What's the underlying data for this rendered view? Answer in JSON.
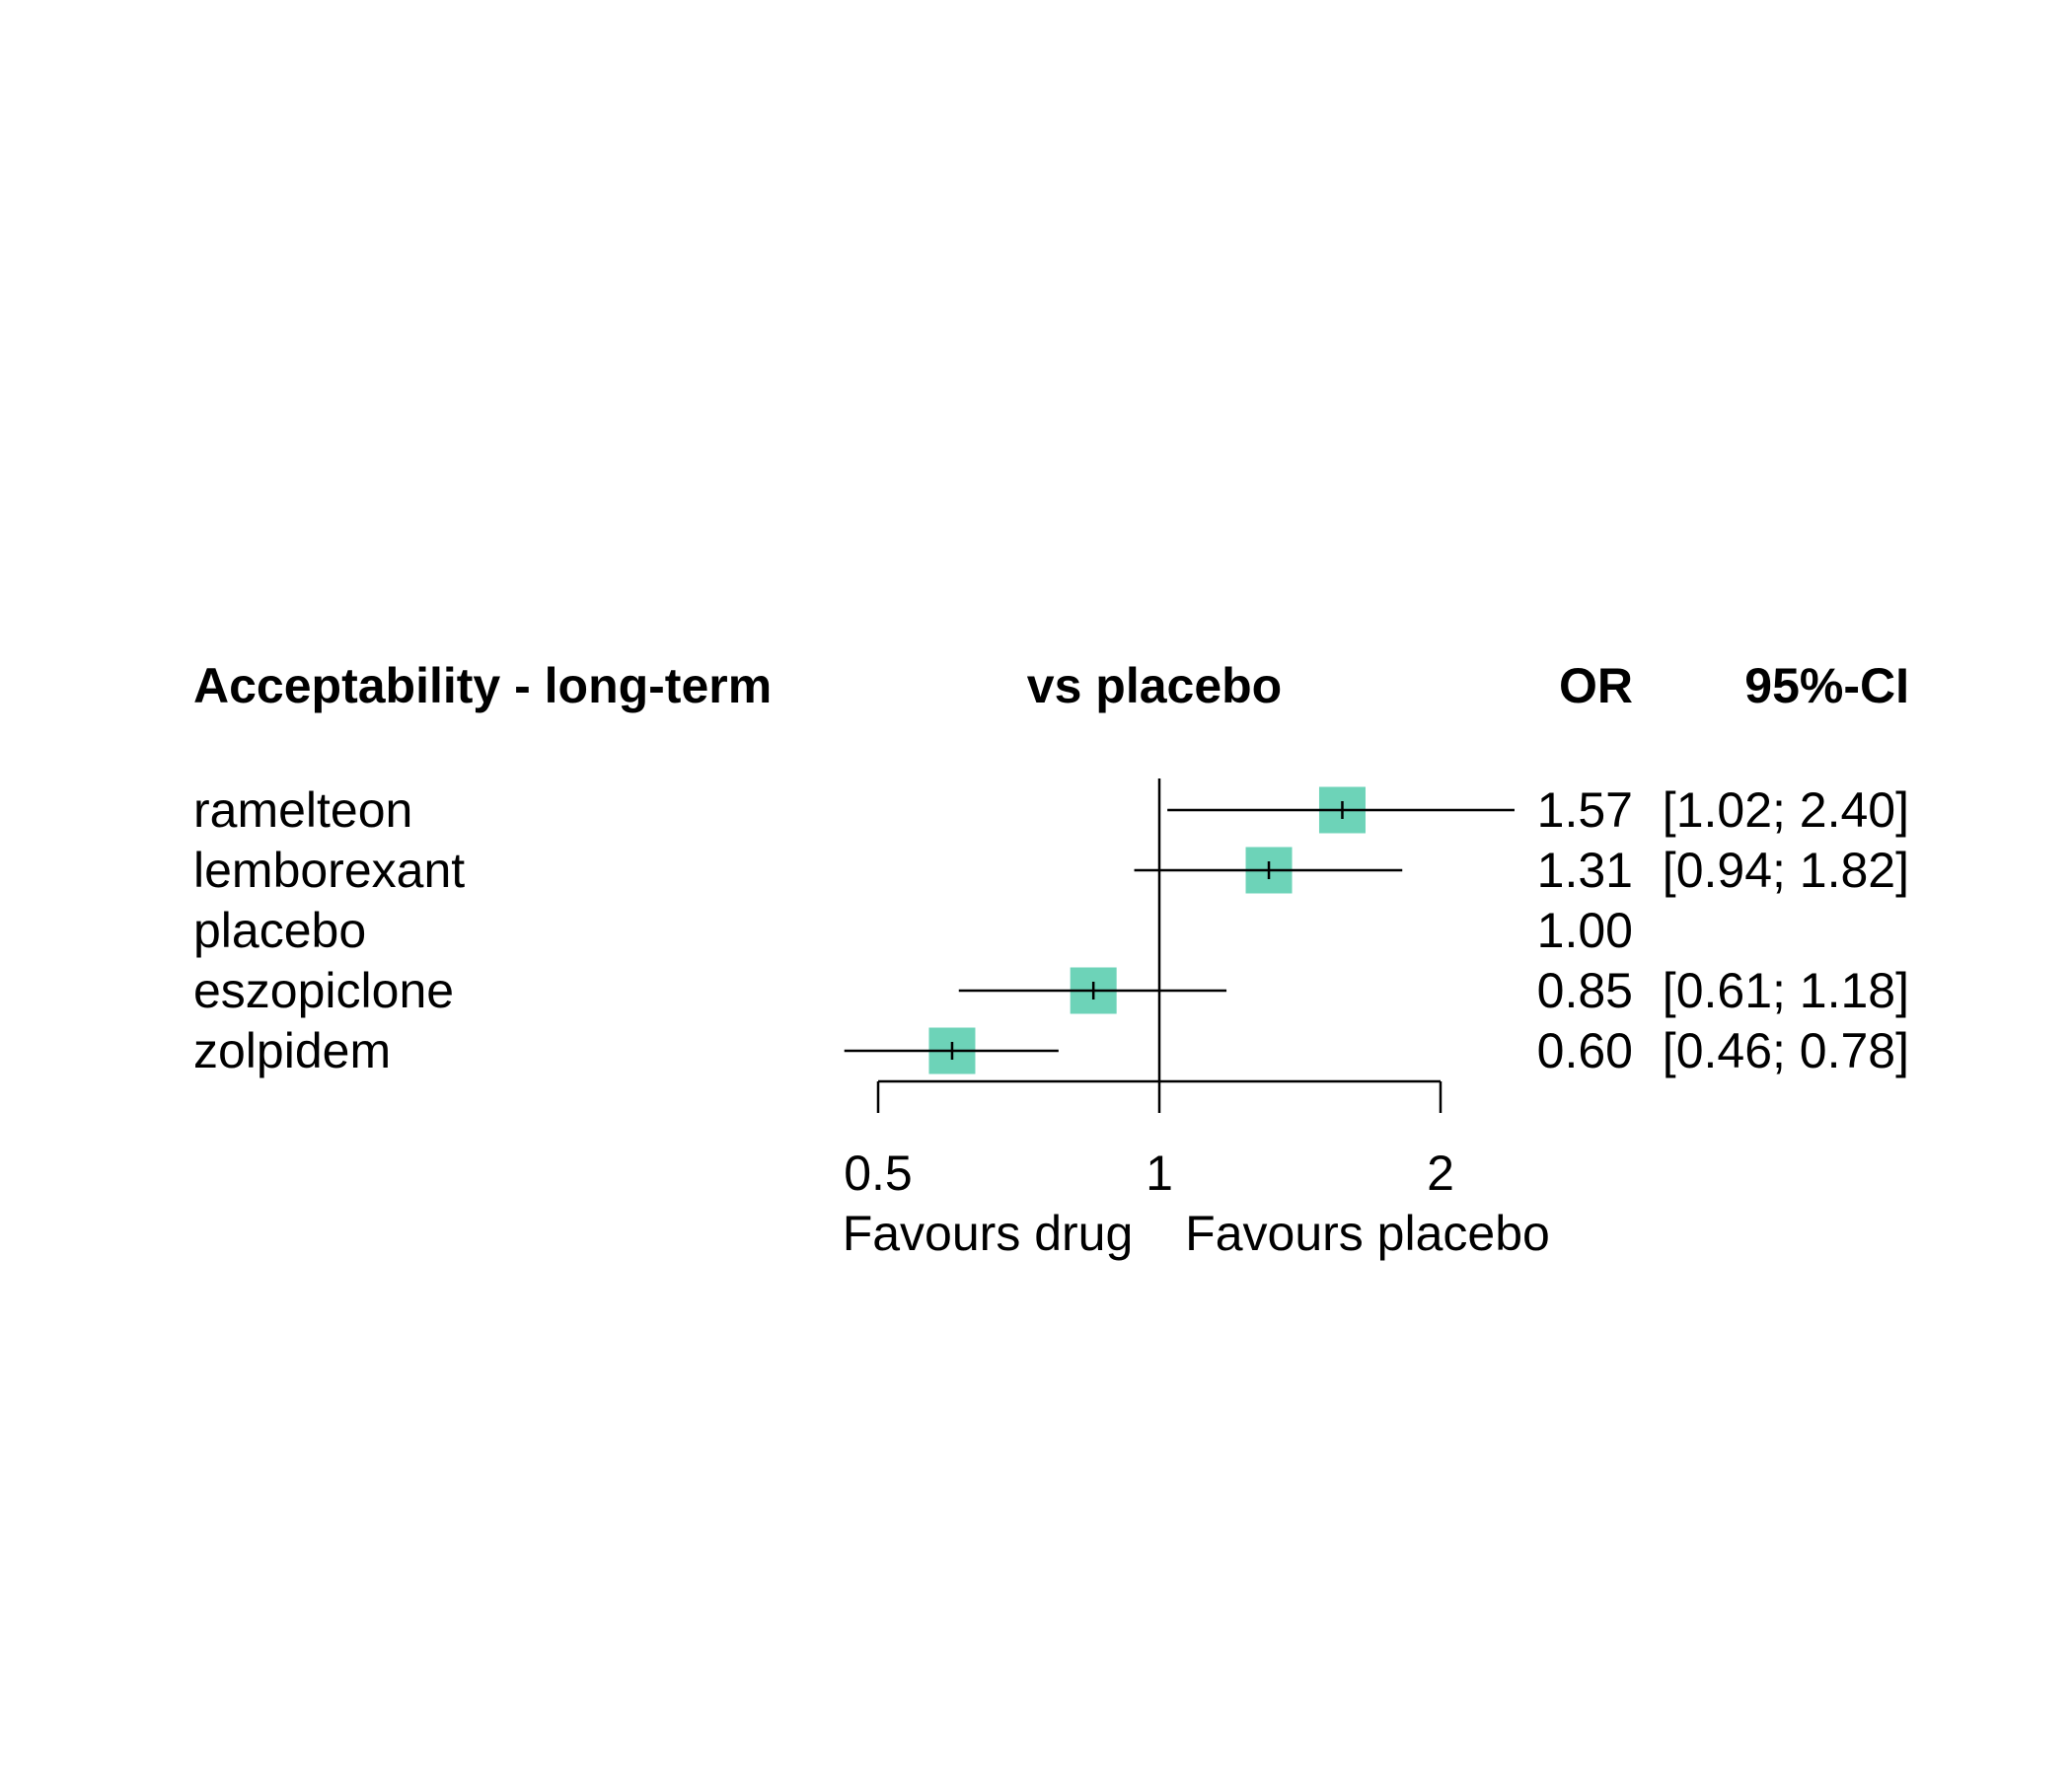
{
  "chart_data": {
    "type": "forest",
    "title": "Acceptability - long-term",
    "comparison_label": "vs placebo",
    "columns": {
      "estimate": "OR",
      "ci": "95%-CI"
    },
    "scale": "log",
    "xlim": [
      0.5,
      2
    ],
    "reference_line": 1,
    "x_ticks": [
      "0.5",
      "1",
      "2"
    ],
    "x_tick_values": [
      0.5,
      1,
      2
    ],
    "favours_left": "Favours drug",
    "favours_right": "Favours placebo",
    "colors": {
      "square": "#6dd3b8",
      "line": "#000000"
    },
    "rows": [
      {
        "label": "ramelteon",
        "or": 1.57,
        "lower": 1.02,
        "upper": 2.4,
        "or_text": "1.57",
        "ci_text": "[1.02; 2.40]"
      },
      {
        "label": "lemborexant",
        "or": 1.31,
        "lower": 0.94,
        "upper": 1.82,
        "or_text": "1.31",
        "ci_text": "[0.94; 1.82]"
      },
      {
        "label": "placebo",
        "or": 1.0,
        "lower": null,
        "upper": null,
        "or_text": "1.00",
        "ci_text": ""
      },
      {
        "label": "eszopiclone",
        "or": 0.85,
        "lower": 0.61,
        "upper": 1.18,
        "or_text": "0.85",
        "ci_text": "[0.61; 1.18]"
      },
      {
        "label": "zolpidem",
        "or": 0.6,
        "lower": 0.46,
        "upper": 0.78,
        "or_text": "0.60",
        "ci_text": "[0.46; 0.78]"
      }
    ]
  }
}
